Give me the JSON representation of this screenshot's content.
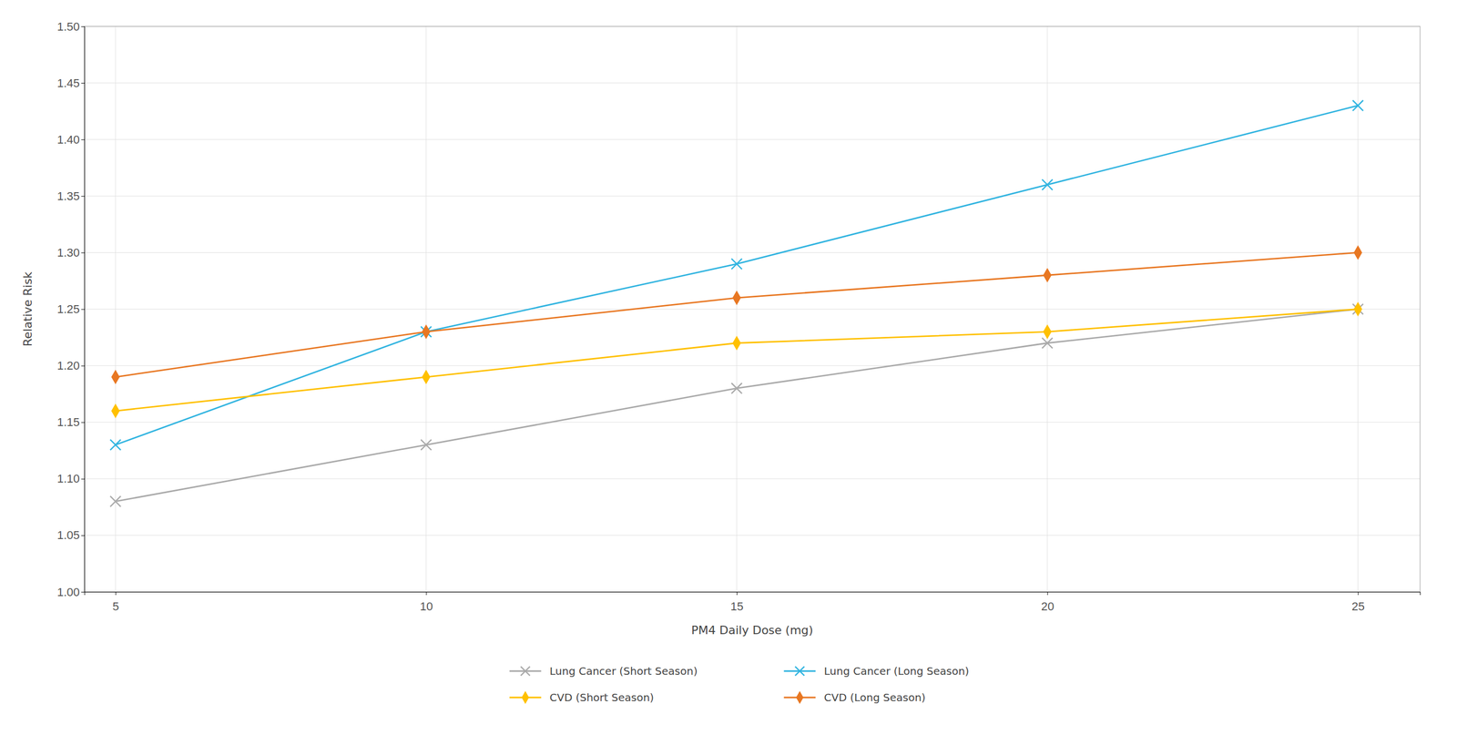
{
  "chart_data": {
    "type": "line",
    "x_label": "PM4 Daily Dose (mg)",
    "y_label": "Relative Risk",
    "x": [
      5,
      10,
      15,
      20,
      25
    ],
    "series": [
      {
        "name": "Lung Cancer (Short Season)",
        "color": "#aaaaaa",
        "marker": "x",
        "values": [
          1.08,
          1.13,
          1.18,
          1.22,
          1.25
        ]
      },
      {
        "name": "Lung Cancer (Long Season)",
        "color": "#31B4E0",
        "marker": "x",
        "values": [
          1.13,
          1.23,
          1.29,
          1.36,
          1.43
        ]
      },
      {
        "name": "CVD (Short Season)",
        "color": "#FFC000",
        "marker": "diamond",
        "values": [
          1.16,
          1.19,
          1.22,
          1.23,
          1.25
        ]
      },
      {
        "name": "CVD (Long Season)",
        "color": "#E87722",
        "marker": "diamond",
        "values": [
          1.19,
          1.23,
          1.26,
          1.28,
          1.3
        ]
      }
    ],
    "xlim": [
      4.5,
      26
    ],
    "ylim": [
      1.0,
      1.5
    ],
    "xticks": [
      5,
      10,
      15,
      20,
      25
    ],
    "yticks": [
      {
        "value": 1.0,
        "label": "1.00"
      },
      1.05,
      {
        "value": 1.1,
        "label": "1.10"
      },
      1.15,
      {
        "value": 1.2,
        "label": "1.20"
      },
      1.25,
      {
        "value": 1.3,
        "label": "1.30"
      },
      1.35,
      {
        "value": 1.4,
        "label": "1.40"
      },
      1.45,
      {
        "value": 1.5,
        "label": "1.50"
      }
    ],
    "grid": true,
    "legend": "bottom"
  }
}
